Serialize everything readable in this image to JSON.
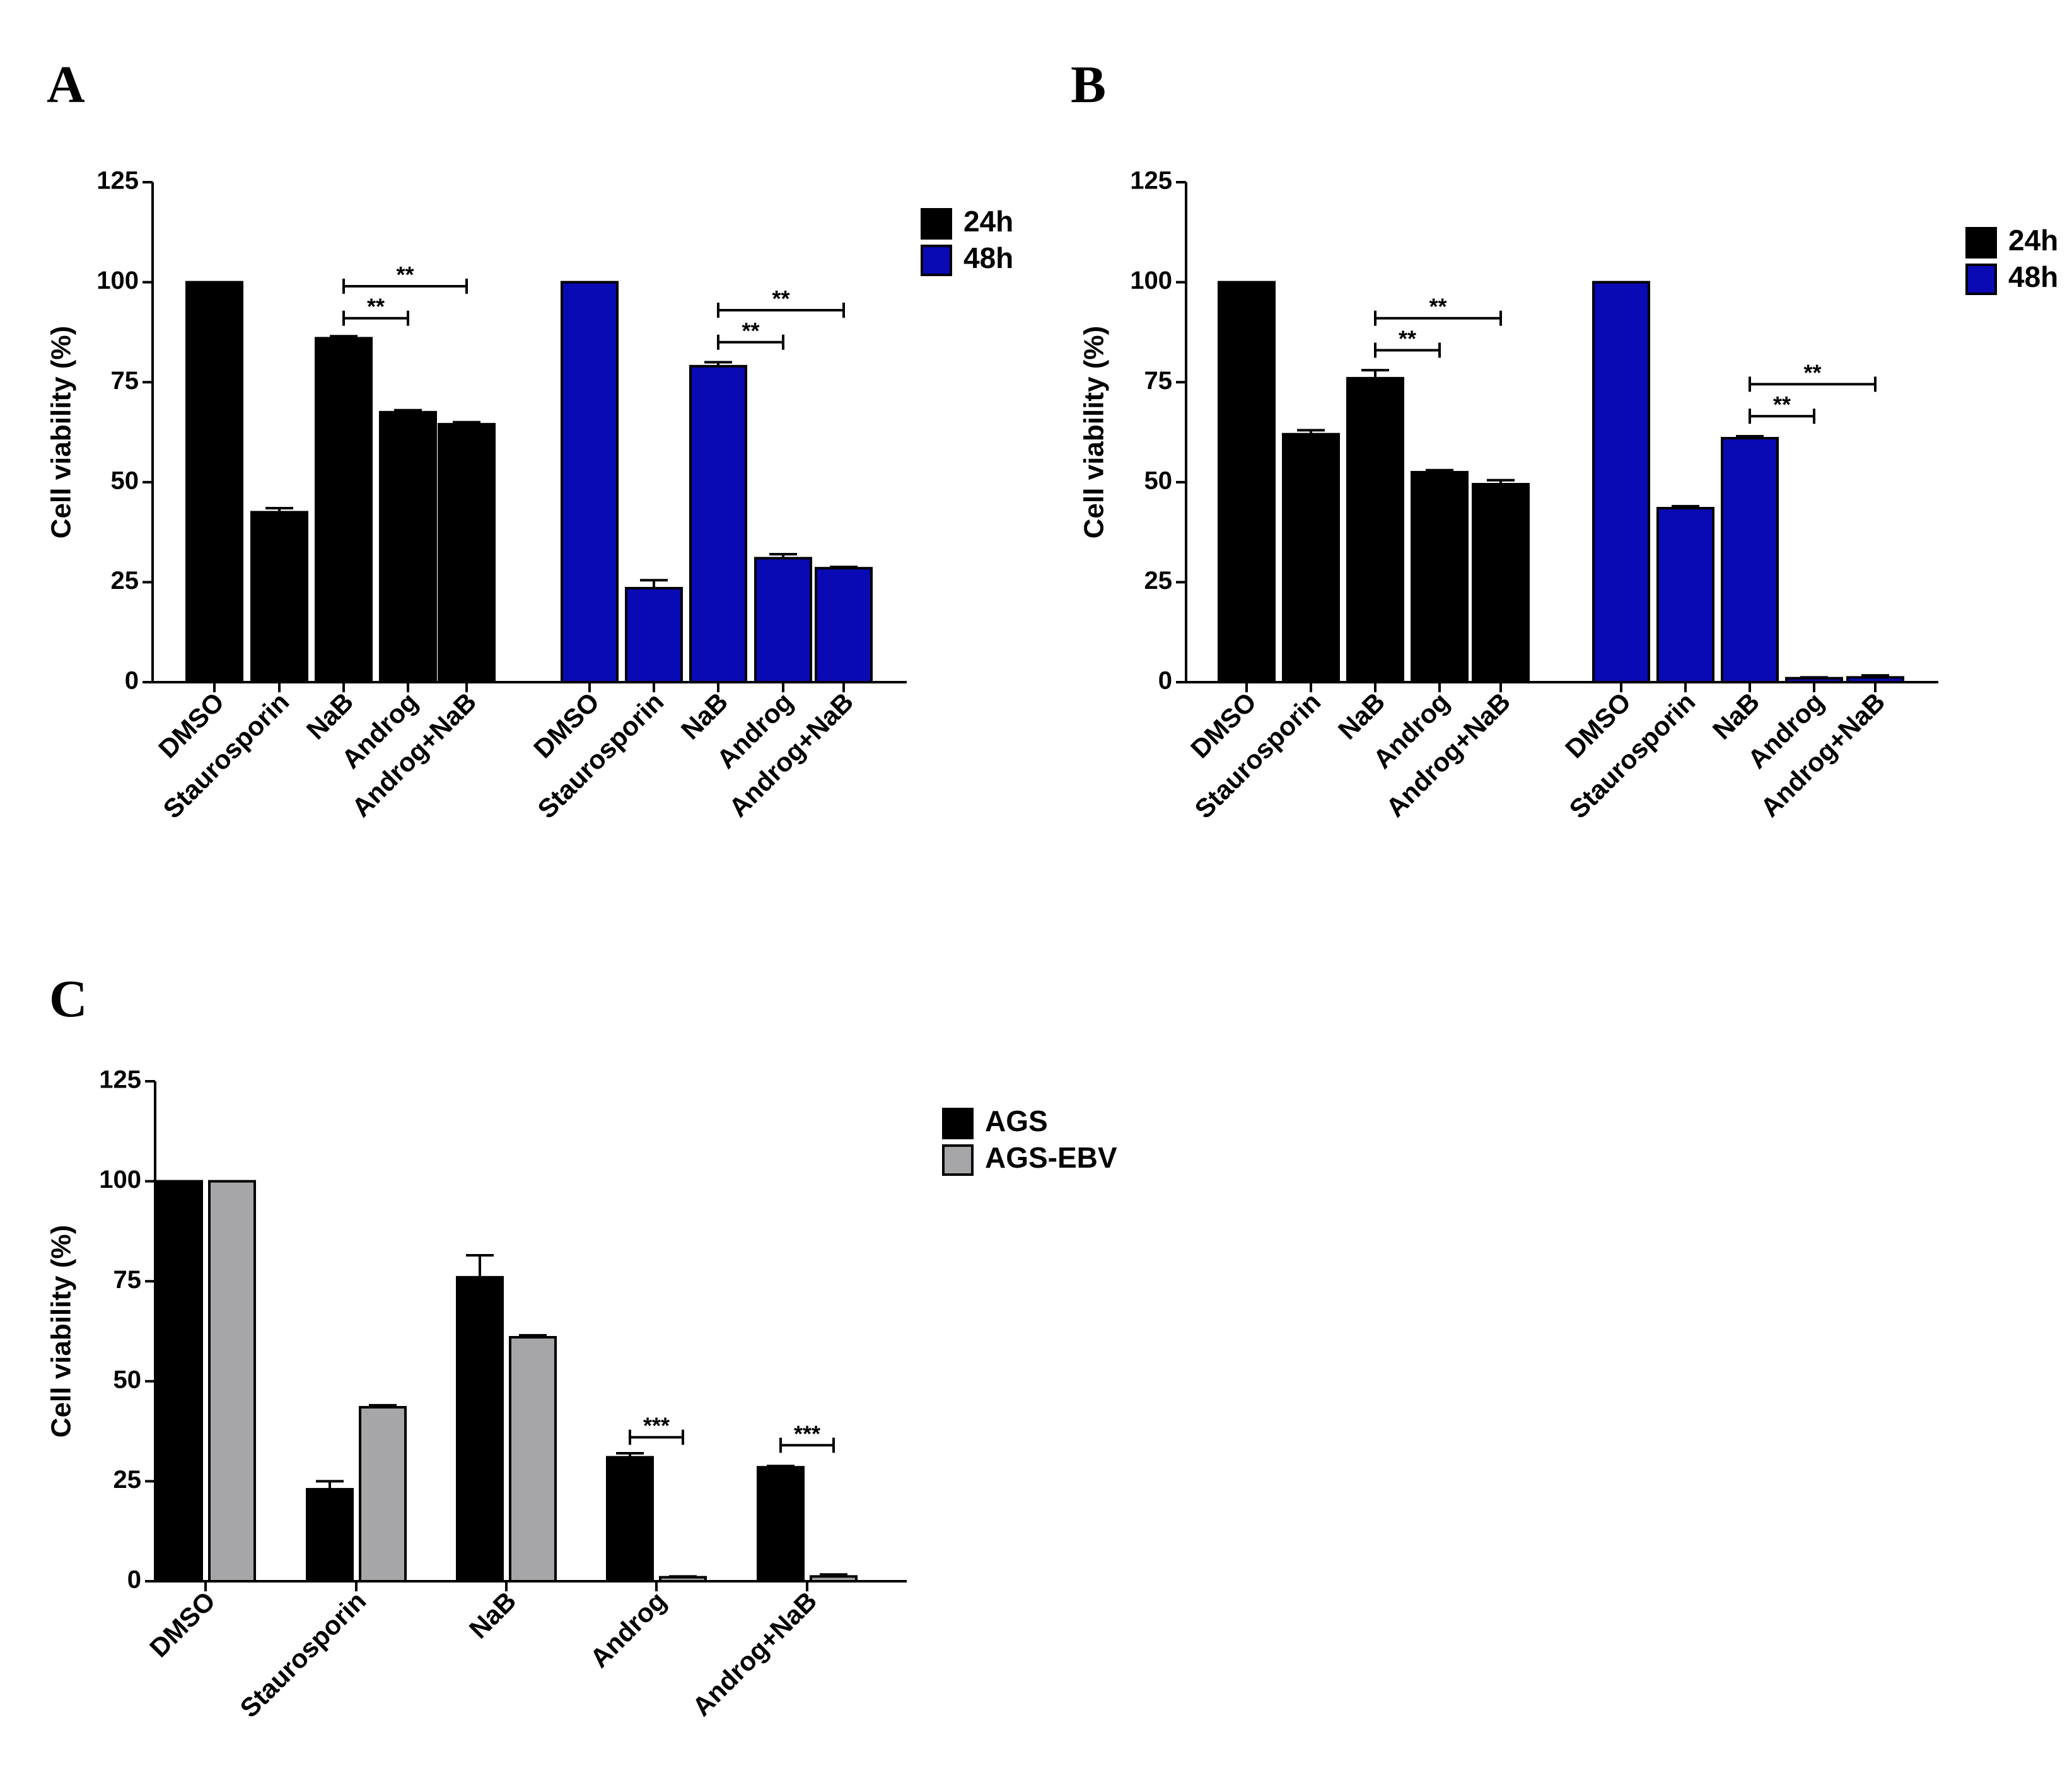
{
  "chart_data": [
    {
      "panel": "A",
      "type": "bar",
      "ylabel": "Cell viability (%)",
      "xlabel": "",
      "ylim": [
        0,
        125
      ],
      "yticks": [
        0,
        25,
        50,
        75,
        100,
        125
      ],
      "categories": [
        "DMSO",
        "Staurosporin",
        "NaB",
        "Androg",
        "Androg+NaB"
      ],
      "groups": [
        {
          "name": "24h",
          "color": "#000000",
          "values": [
            100,
            42.5,
            86,
            67.5,
            64.5
          ],
          "errors": [
            0,
            1,
            0.5,
            0.5,
            0.5
          ]
        },
        {
          "name": "48h",
          "color": "#0a0ab4",
          "values": [
            100,
            23.5,
            79,
            31,
            28.5
          ],
          "errors": [
            0,
            2,
            1,
            1,
            0.3
          ]
        }
      ],
      "legend": [
        {
          "label": "24h",
          "color": "#000000"
        },
        {
          "label": "48h",
          "color": "#0a0ab4"
        }
      ],
      "annotations": [
        {
          "group": 0,
          "from": 2,
          "to": 3,
          "label": "**",
          "level": 91
        },
        {
          "group": 0,
          "from": 2,
          "to": 4,
          "label": "**",
          "level": 99
        },
        {
          "group": 1,
          "from": 2,
          "to": 3,
          "label": "**",
          "level": 85
        },
        {
          "group": 1,
          "from": 2,
          "to": 4,
          "label": "**",
          "level": 93
        }
      ]
    },
    {
      "panel": "B",
      "type": "bar",
      "ylabel": "Cell viability (%)",
      "xlabel": "",
      "ylim": [
        0,
        125
      ],
      "yticks": [
        0,
        25,
        50,
        75,
        100,
        125
      ],
      "categories": [
        "DMSO",
        "Staurosporin",
        "NaB",
        "Androg",
        "Androg+NaB"
      ],
      "groups": [
        {
          "name": "24h",
          "color": "#000000",
          "values": [
            100,
            62,
            76,
            52.5,
            49.5
          ],
          "errors": [
            0,
            1,
            2,
            0.5,
            1
          ]
        },
        {
          "name": "48h",
          "color": "#0a0ab4",
          "values": [
            100,
            43.5,
            61,
            1,
            1.2
          ],
          "errors": [
            0,
            0.5,
            0.5,
            0.2,
            0.5
          ]
        }
      ],
      "legend": [
        {
          "label": "24h",
          "color": "#000000"
        },
        {
          "label": "48h",
          "color": "#0a0ab4"
        }
      ],
      "annotations": [
        {
          "group": 0,
          "from": 2,
          "to": 3,
          "label": "**",
          "level": 83
        },
        {
          "group": 0,
          "from": 2,
          "to": 4,
          "label": "**",
          "level": 91
        },
        {
          "group": 1,
          "from": 2,
          "to": 3,
          "label": "**",
          "level": 66.5
        },
        {
          "group": 1,
          "from": 2,
          "to": 4,
          "label": "**",
          "level": 74.5
        }
      ]
    },
    {
      "panel": "C",
      "type": "bar",
      "ylabel": "Cell viability (%)",
      "xlabel": "",
      "ylim": [
        0,
        125
      ],
      "yticks": [
        0,
        25,
        50,
        75,
        100,
        125
      ],
      "categories": [
        "DMSO",
        "Staurosporin",
        "NaB",
        "Androg",
        "Androg+NaB"
      ],
      "series": [
        {
          "name": "AGS",
          "color": "#000000",
          "values": [
            100,
            23,
            76,
            31,
            28.5
          ],
          "errors": [
            0,
            2,
            5.5,
            1,
            0.3
          ]
        },
        {
          "name": "AGS-EBV",
          "color": "#a6a6a8",
          "values": [
            100,
            43.5,
            61,
            1,
            1.2
          ],
          "errors": [
            0,
            0.5,
            0.5,
            0.2,
            0.5
          ]
        }
      ],
      "legend": [
        {
          "label": "AGS",
          "color": "#000000"
        },
        {
          "label": "AGS-EBV",
          "color": "#a6a6a8"
        }
      ],
      "annotations": [
        {
          "category": 3,
          "label": "***",
          "level": 36
        },
        {
          "category": 4,
          "label": "***",
          "level": 34
        }
      ]
    }
  ]
}
